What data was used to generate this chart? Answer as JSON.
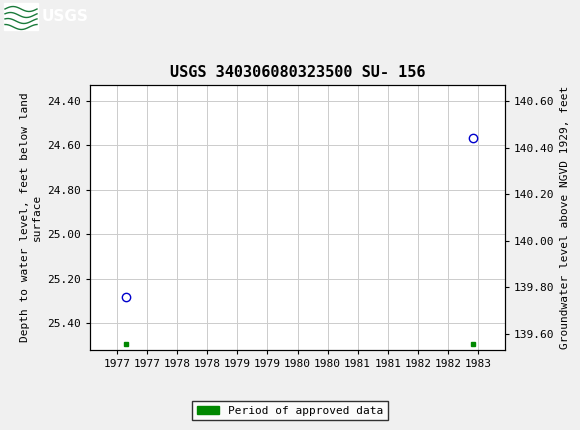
{
  "title": "USGS 340306080323500 SU- 156",
  "header_color": "#1a7a3a",
  "background_color": "#f0f0f0",
  "plot_bg_color": "#ffffff",
  "grid_color": "#cccccc",
  "ylabel_left": "Depth to water level, feet below land\nsurface",
  "ylabel_right": "Groundwater level above NGVD 1929, feet",
  "ylim_left": [
    25.52,
    24.33
  ],
  "ylim_right": [
    139.53,
    140.67
  ],
  "xlim": [
    1976.55,
    1983.45
  ],
  "xticks": [
    1977,
    1977.5,
    1978,
    1978.5,
    1979,
    1979.5,
    1980,
    1980.5,
    1981,
    1981.5,
    1982,
    1982.5,
    1983
  ],
  "xticklabels": [
    "1977",
    "1977",
    "1978",
    "1978",
    "1979",
    "1979",
    "1980",
    "1980",
    "1981",
    "1981",
    "1982",
    "1982",
    "1983"
  ],
  "yticks_left": [
    24.4,
    24.6,
    24.8,
    25.0,
    25.2,
    25.4
  ],
  "yticks_right": [
    140.6,
    140.4,
    140.2,
    140.0,
    139.8,
    139.6
  ],
  "data_points": [
    {
      "x": 1977.15,
      "y_left": 25.28
    },
    {
      "x": 1982.92,
      "y_left": 24.57
    }
  ],
  "approved_markers": [
    {
      "x": 1977.15,
      "y_left": 25.495
    },
    {
      "x": 1982.92,
      "y_left": 25.495
    }
  ],
  "circle_color": "#0000cc",
  "approved_color": "#008800",
  "legend_label": "Period of approved data",
  "title_fontsize": 11,
  "axis_fontsize": 8,
  "tick_fontsize": 8
}
